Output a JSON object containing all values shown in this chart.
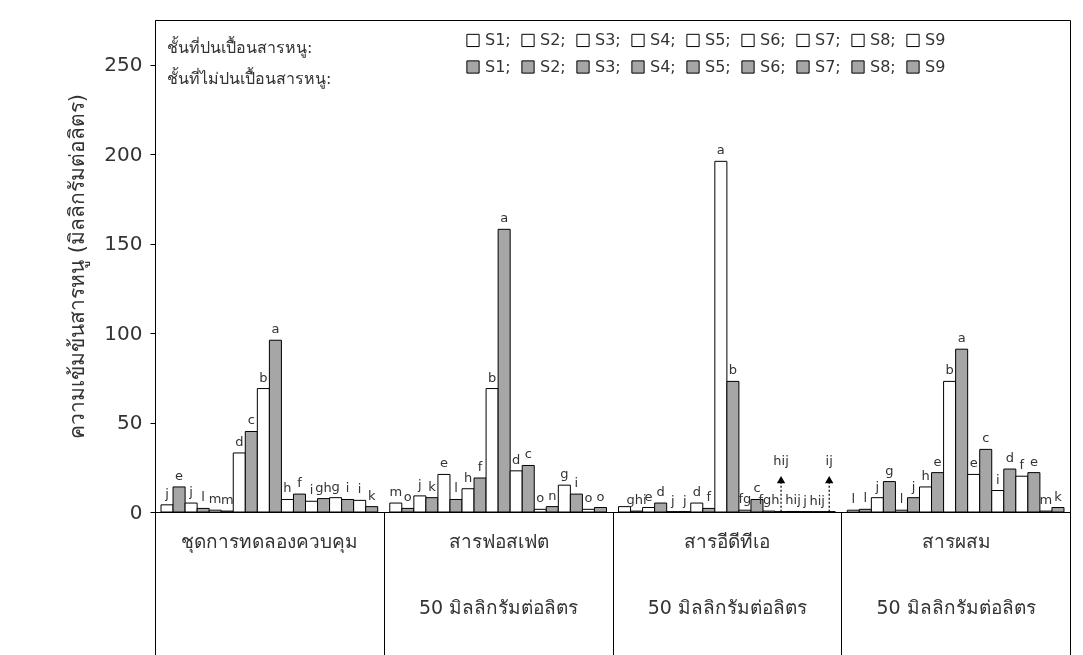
{
  "chart_data": {
    "type": "bar",
    "ylabel": "ความเข้มข้นสารหนู (มิลลิกรัมต่อลิตร)",
    "categories": [
      "ชุดการทดลองควบคุม",
      "สารฟอสเฟต\n50 มิลลิกรัมต่อลิตร",
      "สารอีดีทีเอ\n50 มิลลิกรัมต่อลิตร",
      "สารผสม\n50 มิลลิกรัมต่อลิตร"
    ],
    "ylim": [
      0,
      275
    ],
    "yticks": [
      0,
      50,
      100,
      150,
      200,
      250
    ],
    "grid": false,
    "legend": "top",
    "annotations": [
      "ชั้นที่ปนเปื้อนสารหนู:",
      "ชั้นที่ไม่ปนเปื้อนสารหนู:"
    ],
    "series": [
      {
        "name": "S1;",
        "color": "#ffffff",
        "values": [
          4,
          5,
          3,
          1
        ],
        "value_labels": [
          "j",
          "m",
          null,
          "l"
        ]
      },
      {
        "name": "S1;",
        "color": "#a6a6a6",
        "values": [
          14,
          2,
          0.5,
          1.5
        ],
        "value_labels": [
          "e",
          "o",
          "ghi",
          "l"
        ]
      },
      {
        "name": "S2;",
        "color": "#ffffff",
        "values": [
          5,
          9,
          2.5,
          8
        ],
        "value_labels": [
          "j",
          "j",
          "e",
          "j"
        ]
      },
      {
        "name": "S2;",
        "color": "#a6a6a6",
        "values": [
          2,
          8,
          5,
          17
        ],
        "value_labels": [
          "l",
          "k",
          "d",
          "g"
        ]
      },
      {
        "name": "S3;",
        "color": "#ffffff",
        "values": [
          1,
          21,
          0.2,
          1
        ],
        "value_labels": [
          "m",
          "e",
          "j",
          "l"
        ]
      },
      {
        "name": "S3;",
        "color": "#a6a6a6",
        "values": [
          0.5,
          7,
          0.2,
          8
        ],
        "value_labels": [
          "m",
          "l",
          "j",
          "j"
        ]
      },
      {
        "name": "S4;",
        "color": "#ffffff",
        "values": [
          33,
          13,
          5,
          14
        ],
        "value_labels": [
          "d",
          "h",
          "d",
          "h"
        ]
      },
      {
        "name": "S4;",
        "color": "#a6a6a6",
        "values": [
          45,
          19,
          2,
          22
        ],
        "value_labels": [
          "c",
          "f",
          "f",
          "e"
        ]
      },
      {
        "name": "S5;",
        "color": "#ffffff",
        "values": [
          69,
          69,
          196,
          73
        ],
        "value_labels": [
          "b",
          "b",
          "a",
          "b"
        ]
      },
      {
        "name": "S5;",
        "color": "#a6a6a6",
        "values": [
          96,
          158,
          73,
          91
        ],
        "value_labels": [
          "a",
          "a",
          "b",
          "a"
        ]
      },
      {
        "name": "S6;",
        "color": "#ffffff",
        "values": [
          7,
          23,
          1,
          21
        ],
        "value_labels": [
          "h",
          "d",
          "fg",
          "e"
        ]
      },
      {
        "name": "S6;",
        "color": "#a6a6a6",
        "values": [
          10,
          26,
          7,
          35
        ],
        "value_labels": [
          "f",
          "c",
          "c",
          "c"
        ]
      },
      {
        "name": "S7;",
        "color": "#ffffff",
        "values": [
          6,
          1.5,
          0.5,
          12
        ],
        "value_labels": [
          "i",
          "o",
          "fgh",
          "i"
        ]
      },
      {
        "name": "S7;",
        "color": "#a6a6a6",
        "values": [
          7.5,
          3,
          0.2,
          24
        ],
        "value_labels": [
          "gh",
          "n",
          "hij",
          "d"
        ]
      },
      {
        "name": "S8;",
        "color": "#ffffff",
        "values": [
          8,
          15,
          0.3,
          20
        ],
        "value_labels": [
          "g",
          "g",
          "hij",
          "f"
        ]
      },
      {
        "name": "S8;",
        "color": "#a6a6a6",
        "values": [
          7,
          10,
          0.2,
          22
        ],
        "value_labels": [
          "i",
          "i",
          "j",
          "e"
        ]
      },
      {
        "name": "S9",
        "color": "#ffffff",
        "values": [
          6.5,
          1.5,
          0.2,
          0.5
        ],
        "value_labels": [
          "i",
          "o",
          "hij",
          "m"
        ]
      },
      {
        "name": "S9",
        "color": "#a6a6a6",
        "values": [
          3,
          2.5,
          0.2,
          2.5
        ],
        "value_labels": [
          "k",
          "o",
          "ij",
          "k"
        ]
      }
    ]
  }
}
